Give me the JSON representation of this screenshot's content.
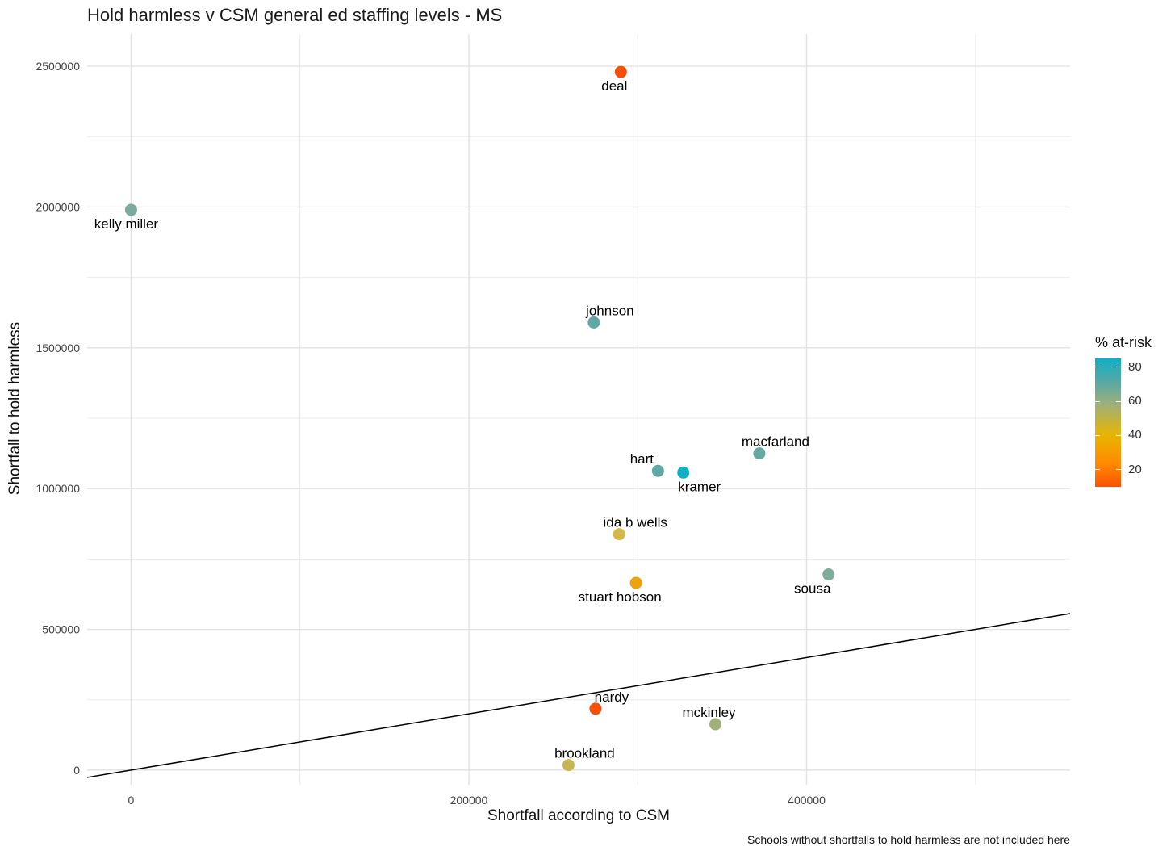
{
  "chart_data": {
    "type": "scatter",
    "title": "Hold harmless v CSM general ed staffing levels - MS",
    "xlabel": "Shortfall according to CSM",
    "ylabel": "Shortfall to hold harmless",
    "caption": "Schools without shortfalls to hold harmless are not included here",
    "xlim": [
      -26000,
      556000
    ],
    "ylim": [
      -52000,
      2615000
    ],
    "x_ticks": [
      0,
      200000,
      400000
    ],
    "y_ticks": [
      0,
      500000,
      1000000,
      1500000,
      2000000,
      2500000
    ],
    "reference_line": {
      "type": "y=x",
      "color": "#000000"
    },
    "grid": true,
    "legend": {
      "title": "% at-risk",
      "placement": "right",
      "ticks": [
        80,
        60,
        40,
        20
      ],
      "range": [
        10,
        85
      ]
    },
    "points": [
      {
        "label": "deal",
        "x": 290000,
        "y": 2480000,
        "at_risk": 10,
        "color": "#f4500a",
        "label_pos": "below"
      },
      {
        "label": "kelly miller",
        "x": 0,
        "y": 1990000,
        "at_risk": 75,
        "color": "#7aab9e",
        "label_pos": "below"
      },
      {
        "label": "johnson",
        "x": 274000,
        "y": 1590000,
        "at_risk": 80,
        "color": "#5fa8a4",
        "label_pos": "above"
      },
      {
        "label": "hart",
        "x": 312000,
        "y": 1063000,
        "at_risk": 80,
        "color": "#5fa8a4",
        "label_pos": "above-left"
      },
      {
        "label": "kramer",
        "x": 327000,
        "y": 1057000,
        "at_risk": 85,
        "color": "#12b0c5",
        "label_pos": "below"
      },
      {
        "label": "macfarland",
        "x": 372000,
        "y": 1125000,
        "at_risk": 78,
        "color": "#66a9a1",
        "label_pos": "above"
      },
      {
        "label": "ida b wells",
        "x": 289000,
        "y": 838000,
        "at_risk": 45,
        "color": "#d6b84a",
        "label_pos": "above"
      },
      {
        "label": "stuart hobson",
        "x": 299000,
        "y": 665000,
        "at_risk": 35,
        "color": "#eea20e",
        "label_pos": "below"
      },
      {
        "label": "sousa",
        "x": 413000,
        "y": 695000,
        "at_risk": 72,
        "color": "#7fac9a",
        "label_pos": "below"
      },
      {
        "label": "hardy",
        "x": 275000,
        "y": 218000,
        "at_risk": 10,
        "color": "#f4500a",
        "label_pos": "above"
      },
      {
        "label": "mckinley",
        "x": 346000,
        "y": 163000,
        "at_risk": 60,
        "color": "#9fb07a",
        "label_pos": "above"
      },
      {
        "label": "brookland",
        "x": 259000,
        "y": 18000,
        "at_risk": 50,
        "color": "#c7b551",
        "label_pos": "above"
      }
    ]
  }
}
